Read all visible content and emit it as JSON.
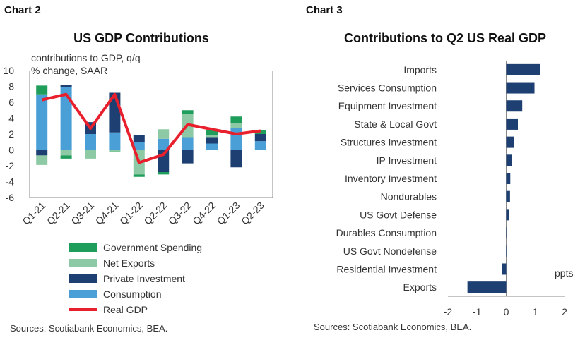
{
  "left": {
    "panel_label": "Chart 2",
    "source": "Sources: Scotiabank Economics, BEA."
  },
  "right": {
    "panel_label": "Chart 3",
    "source": "Sources: Scotiabank Economics, BEA."
  },
  "chart_data": [
    {
      "type": "bar",
      "stacked": true,
      "title": "US GDP Contributions",
      "ylabel": "contributions to GDP, q/q % change, SAAR",
      "ylabel_lines": [
        "contributions to GDP, q/q",
        "% change, SAAR"
      ],
      "ylim": [
        -6,
        10
      ],
      "yticks": [
        -6,
        -4,
        -2,
        0,
        2,
        4,
        6,
        8,
        10
      ],
      "categories": [
        "Q1-21",
        "Q2-21",
        "Q3-21",
        "Q4-21",
        "Q1-22",
        "Q2-22",
        "Q3-22",
        "Q4-22",
        "Q1-23",
        "Q2-23"
      ],
      "series": [
        {
          "name": "Consumption",
          "color": "#4a9fd6",
          "values": [
            7.0,
            7.9,
            2.0,
            2.2,
            1.0,
            1.4,
            1.6,
            0.8,
            2.8,
            1.1
          ]
        },
        {
          "name": "Private Investment",
          "color": "#1d3f72",
          "values": [
            -0.7,
            0.3,
            1.5,
            5.0,
            0.9,
            -2.8,
            -1.7,
            0.8,
            -2.2,
            0.9
          ]
        },
        {
          "name": "Net Exports",
          "color": "#8dc9a4",
          "values": [
            -1.2,
            -0.7,
            -1.1,
            -0.2,
            -3.1,
            1.2,
            2.9,
            0.3,
            0.6,
            0.0
          ]
        },
        {
          "name": "Government Spending",
          "color": "#1f9d5a",
          "values": [
            1.1,
            -0.4,
            0.0,
            -0.1,
            -0.3,
            -0.3,
            0.5,
            0.6,
            0.8,
            0.5
          ]
        }
      ],
      "line": {
        "name": "Real GDP",
        "color": "#e8202d",
        "values": [
          6.3,
          7.0,
          2.7,
          7.0,
          -1.6,
          -0.6,
          3.2,
          2.6,
          2.0,
          2.4
        ]
      },
      "legend": [
        "Government Spending",
        "Net Exports",
        "Private Investment",
        "Consumption",
        "Real GDP"
      ]
    },
    {
      "type": "bar",
      "orientation": "horizontal",
      "title": "Contributions to Q2 US Real GDP",
      "xlabel": "ppts",
      "xlim": [
        -2,
        2
      ],
      "xticks": [
        -2,
        -1,
        0,
        1,
        2
      ],
      "color": "#1d3f72",
      "categories": [
        "Imports",
        "Services Consumption",
        "Equipment Investment",
        "State & Local Govt",
        "Structures Investment",
        "IP Investment",
        "Inventory Investment",
        "Nondurables",
        "US Govt Defense",
        "Durables Consumption",
        "US Govt Nondefense",
        "Residential Investment",
        "Exports"
      ],
      "values": [
        1.17,
        0.97,
        0.55,
        0.4,
        0.26,
        0.2,
        0.14,
        0.13,
        0.09,
        0.01,
        0.02,
        -0.15,
        -1.33
      ]
    }
  ]
}
